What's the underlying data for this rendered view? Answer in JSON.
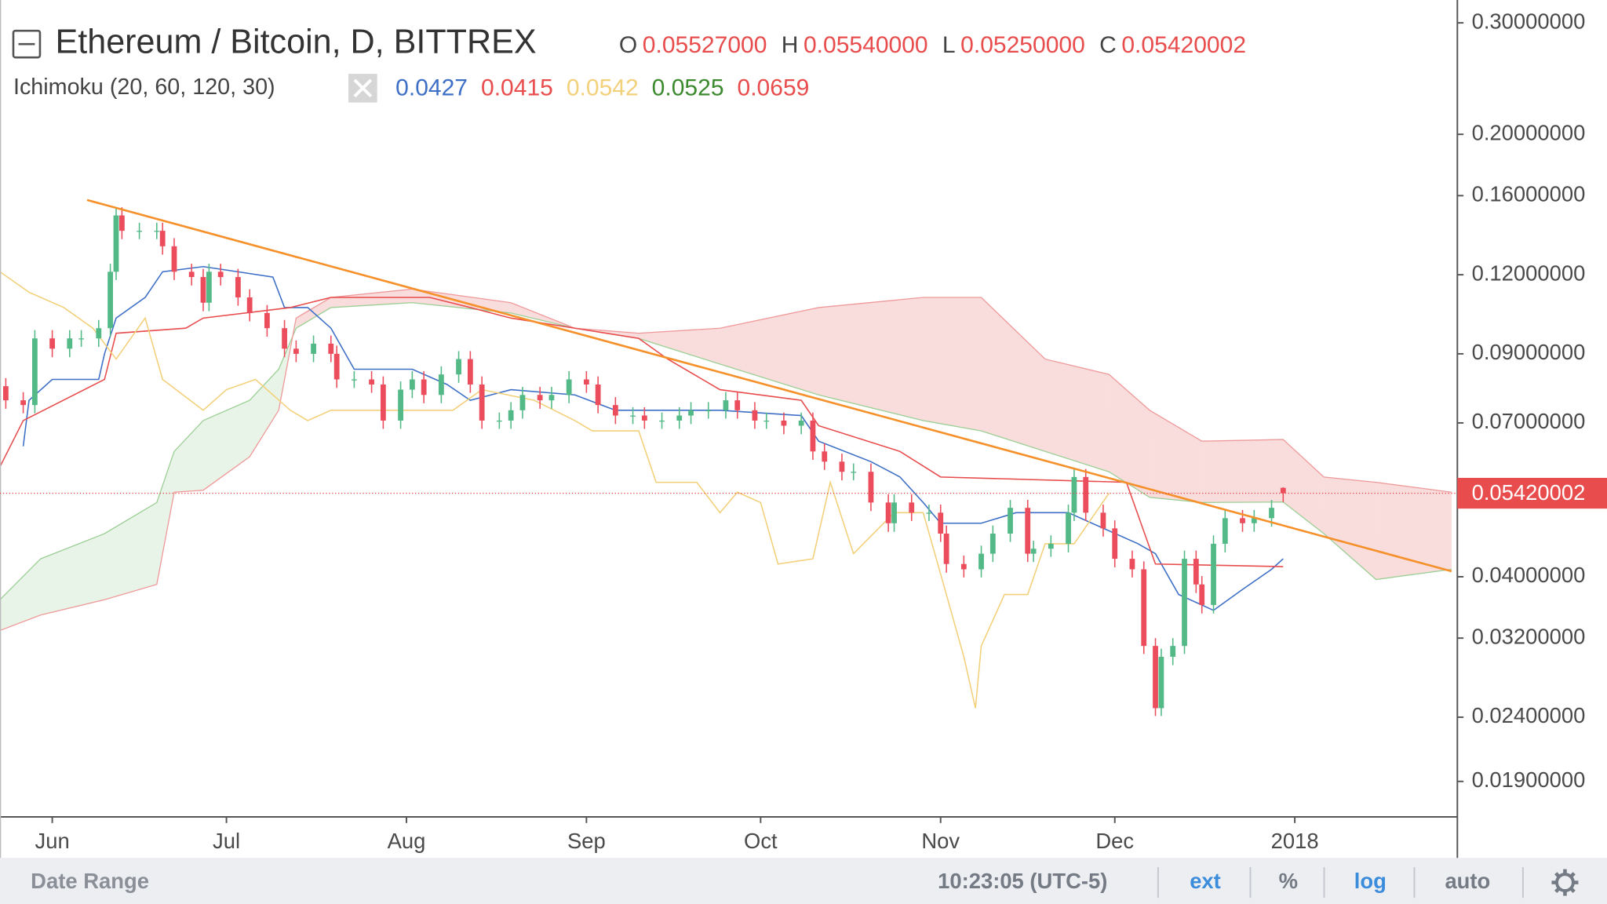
{
  "chart_data": {
    "type": "candlestick",
    "title": "Ethereum / Bitcoin, D, BITTREX",
    "ohlc_keys": [
      "O",
      "H",
      "L",
      "C"
    ],
    "ohlc_labels": [
      "0.05527000",
      "0.05540000",
      "0.05250000",
      "0.05420002"
    ],
    "indicator": {
      "label": "Ichimoku (20, 60, 120, 30)",
      "values": [
        0.0427,
        0.0415,
        0.0542,
        0.0525,
        0.0659
      ],
      "colors": [
        "#3d6fc6",
        "#e84c4c",
        "#f3d07a",
        "#3c8a2e",
        "#e84c4c"
      ]
    },
    "log_scale": true,
    "grid": false,
    "colors": {
      "up": "#53b987",
      "down": "#eb4d5c"
    },
    "xlim": [
      -9,
      242
    ],
    "xticks": [
      {
        "value": 0,
        "label": "Jun"
      },
      {
        "value": 30,
        "label": "Jul"
      },
      {
        "value": 61,
        "label": "Aug"
      },
      {
        "value": 92,
        "label": "Sep"
      },
      {
        "value": 122,
        "label": "Oct"
      },
      {
        "value": 153,
        "label": "Nov"
      },
      {
        "value": 183,
        "label": "Dec"
      },
      {
        "value": 214,
        "label": "2018"
      }
    ],
    "ylim": [
      0.0167,
      0.326
    ],
    "yticks": [
      {
        "value": 0.3,
        "label": "0.30000000"
      },
      {
        "value": 0.2,
        "label": "0.20000000"
      },
      {
        "value": 0.16,
        "label": "0.16000000"
      },
      {
        "value": 0.12,
        "label": "0.12000000"
      },
      {
        "value": 0.09,
        "label": "0.09000000"
      },
      {
        "value": 0.07,
        "label": "0.07000000"
      },
      {
        "value": 0.04,
        "label": "0.04000000"
      },
      {
        "value": 0.032,
        "label": "0.03200000"
      },
      {
        "value": 0.024,
        "label": "0.02400000"
      },
      {
        "value": 0.019,
        "label": "0.01900000"
      }
    ],
    "x": [
      -8,
      -5,
      -3,
      0,
      3,
      5,
      8,
      10,
      11,
      12,
      15,
      18,
      19,
      21,
      24,
      26,
      27,
      29,
      32,
      34,
      37,
      40,
      42,
      45,
      48,
      49,
      52,
      55,
      57,
      60,
      62,
      64,
      67,
      70,
      72,
      74,
      77,
      79,
      81,
      84,
      86,
      89,
      92,
      94,
      97,
      100,
      102,
      105,
      108,
      110,
      113,
      116,
      118,
      121,
      123,
      126,
      129,
      131,
      133,
      136,
      138,
      141,
      144,
      145,
      148,
      151,
      153,
      154,
      157,
      160,
      162,
      165,
      168,
      169,
      172,
      175,
      176,
      178,
      181,
      183,
      186,
      188,
      190,
      191,
      193,
      195,
      197,
      198,
      200,
      202,
      205,
      207,
      210,
      212
    ],
    "open": [
      0.08,
      0.076,
      0.0747,
      0.0952,
      0.0917,
      0.0952,
      0.0952,
      0.0988,
      0.1213,
      0.1489,
      0.1408,
      0.1408,
      0.1408,
      0.1331,
      0.1213,
      0.119,
      0.1084,
      0.1213,
      0.119,
      0.1105,
      0.1044,
      0.0988,
      0.0917,
      0.09,
      0.0934,
      0.09,
      0.082,
      0.082,
      0.0805,
      0.0706,
      0.079,
      0.082,
      0.0775,
      0.0835,
      0.0883,
      0.0805,
      0.0706,
      0.0706,
      0.0733,
      0.0775,
      0.076,
      0.0775,
      0.082,
      0.0805,
      0.0747,
      0.0719,
      0.0719,
      0.0706,
      0.0706,
      0.0719,
      0.0733,
      0.0733,
      0.076,
      0.0733,
      0.0706,
      0.0706,
      0.0693,
      0.0706,
      0.0631,
      0.0608,
      0.0586,
      0.0586,
      0.0524,
      0.0486,
      0.0524,
      0.0505,
      0.0505,
      0.0468,
      0.0419,
      0.0411,
      0.0435,
      0.0468,
      0.0514,
      0.0435,
      0.0443,
      0.0451,
      0.0505,
      0.0575,
      0.0505,
      0.0477,
      0.0427,
      0.0411,
      0.0311,
      0.0248,
      0.0299,
      0.0311,
      0.0427,
      0.0389,
      0.0361,
      0.0451,
      0.0495,
      0.0486,
      0.0495,
      0.05527
    ],
    "high": [
      0.0824,
      0.0783,
      0.0981,
      0.0981,
      0.0981,
      0.0981,
      0.1018,
      0.1249,
      0.1534,
      0.1534,
      0.145,
      0.145,
      0.145,
      0.1371,
      0.1249,
      0.1226,
      0.1249,
      0.1249,
      0.1226,
      0.1138,
      0.1075,
      0.1018,
      0.0945,
      0.0962,
      0.0962,
      0.0927,
      0.0845,
      0.0845,
      0.0829,
      0.0814,
      0.0845,
      0.0845,
      0.086,
      0.0909,
      0.0909,
      0.0829,
      0.0727,
      0.0755,
      0.0798,
      0.0798,
      0.0798,
      0.0845,
      0.0845,
      0.0829,
      0.0769,
      0.0741,
      0.0741,
      0.0727,
      0.0741,
      0.0755,
      0.0755,
      0.0783,
      0.0783,
      0.0755,
      0.0727,
      0.0727,
      0.0727,
      0.0727,
      0.065,
      0.0626,
      0.0604,
      0.0604,
      0.054,
      0.054,
      0.054,
      0.052,
      0.052,
      0.0482,
      0.0432,
      0.0448,
      0.0482,
      0.0529,
      0.0529,
      0.0456,
      0.0465,
      0.052,
      0.0592,
      0.0592,
      0.052,
      0.0491,
      0.044,
      0.0423,
      0.032,
      0.0308,
      0.032,
      0.044,
      0.044,
      0.0401,
      0.0465,
      0.051,
      0.051,
      0.051,
      0.0529,
      0.0554
    ],
    "low": [
      0.0737,
      0.0725,
      0.0725,
      0.0889,
      0.0889,
      0.0923,
      0.0923,
      0.0958,
      0.1177,
      0.1366,
      0.1366,
      0.1366,
      0.1291,
      0.1177,
      0.1154,
      0.1051,
      0.1051,
      0.1154,
      0.1072,
      0.1013,
      0.0958,
      0.0889,
      0.0873,
      0.0873,
      0.0873,
      0.0795,
      0.0795,
      0.0781,
      0.0685,
      0.0685,
      0.0766,
      0.0752,
      0.0752,
      0.081,
      0.0781,
      0.0685,
      0.0685,
      0.0685,
      0.0711,
      0.0737,
      0.0737,
      0.0752,
      0.0781,
      0.0725,
      0.0697,
      0.0697,
      0.0685,
      0.0685,
      0.0685,
      0.0697,
      0.0711,
      0.0711,
      0.0711,
      0.0685,
      0.0685,
      0.0672,
      0.0672,
      0.0612,
      0.059,
      0.0568,
      0.0568,
      0.0508,
      0.0471,
      0.0471,
      0.049,
      0.049,
      0.0454,
      0.0406,
      0.0399,
      0.0399,
      0.0422,
      0.0454,
      0.0422,
      0.0422,
      0.043,
      0.0437,
      0.049,
      0.049,
      0.0463,
      0.0414,
      0.0399,
      0.0302,
      0.0241,
      0.0241,
      0.029,
      0.0302,
      0.0377,
      0.035,
      0.035,
      0.0437,
      0.0471,
      0.0471,
      0.048,
      0.0525
    ],
    "close": [
      0.076,
      0.0747,
      0.0952,
      0.0917,
      0.0952,
      0.0952,
      0.0988,
      0.1213,
      0.1489,
      0.1408,
      0.1408,
      0.1408,
      0.1331,
      0.1213,
      0.119,
      0.1084,
      0.1213,
      0.119,
      0.1105,
      0.1044,
      0.0988,
      0.0917,
      0.09,
      0.0934,
      0.09,
      0.082,
      0.082,
      0.0805,
      0.0706,
      0.079,
      0.082,
      0.0775,
      0.0835,
      0.0883,
      0.0805,
      0.0706,
      0.0706,
      0.0733,
      0.0775,
      0.076,
      0.0775,
      0.082,
      0.0805,
      0.0747,
      0.0719,
      0.0719,
      0.0706,
      0.0706,
      0.0719,
      0.0733,
      0.0733,
      0.076,
      0.0733,
      0.0706,
      0.0706,
      0.0693,
      0.0706,
      0.0631,
      0.0608,
      0.0586,
      0.0586,
      0.0524,
      0.0486,
      0.0524,
      0.0505,
      0.0505,
      0.0468,
      0.0419,
      0.0411,
      0.0435,
      0.0468,
      0.0514,
      0.0435,
      0.0443,
      0.0451,
      0.0505,
      0.0575,
      0.0505,
      0.0477,
      0.0427,
      0.0411,
      0.0311,
      0.0248,
      0.0299,
      0.0311,
      0.0427,
      0.0389,
      0.0361,
      0.0451,
      0.0495,
      0.0486,
      0.0495,
      0.0514,
      0.05420002
    ],
    "lines": [
      {
        "color": "#3d6fc6",
        "x": [
          -5,
          -4,
          0,
          8,
          9,
          11,
          16,
          19,
          26,
          32,
          38,
          40,
          44,
          48,
          52,
          62,
          68,
          72,
          79,
          90,
          97,
          115,
          129,
          132,
          141,
          146,
          150,
          153,
          160,
          166,
          175,
          187,
          190,
          194,
          200,
          205,
          210,
          212
        ],
        "values": [
          0.0643,
          0.076,
          0.082,
          0.082,
          0.09,
          0.1025,
          0.1105,
          0.1213,
          0.1236,
          0.1213,
          0.119,
          0.1065,
          0.1065,
          0.0988,
          0.0851,
          0.0851,
          0.0805,
          0.076,
          0.079,
          0.0775,
          0.0733,
          0.0733,
          0.0719,
          0.0655,
          0.0608,
          0.0575,
          0.0524,
          0.0486,
          0.0486,
          0.0505,
          0.0505,
          0.0451,
          0.0435,
          0.0375,
          0.0354,
          0.0382,
          0.0411,
          0.0427
        ]
      },
      {
        "color": "#e84c4c",
        "x": [
          -9,
          -5,
          9,
          11,
          23,
          26,
          41,
          48,
          65,
          72,
          79,
          90,
          101,
          106,
          115,
          129,
          132,
          146,
          153,
          185,
          190,
          212
        ],
        "values": [
          0.0597,
          0.0706,
          0.082,
          0.097,
          0.0988,
          0.1025,
          0.1065,
          0.1105,
          0.1105,
          0.1065,
          0.1025,
          0.0988,
          0.0952,
          0.0883,
          0.079,
          0.076,
          0.0693,
          0.0631,
          0.0575,
          0.0564,
          0.0419,
          0.0415
        ]
      },
      {
        "color": "#f3d07a",
        "x": [
          -9,
          -4,
          2,
          7,
          11,
          16,
          19,
          26,
          30,
          35,
          41,
          44,
          48,
          62,
          69,
          74,
          83,
          90,
          93,
          101,
          104,
          111,
          115,
          118,
          122,
          125,
          131,
          134,
          138,
          145,
          150,
          153,
          157,
          159,
          160,
          164,
          168,
          171,
          176,
          182
        ],
        "values": [
          0.1213,
          0.1126,
          0.1065,
          0.0988,
          0.0883,
          0.1025,
          0.082,
          0.0733,
          0.079,
          0.082,
          0.0733,
          0.0706,
          0.0733,
          0.0733,
          0.0733,
          0.079,
          0.076,
          0.0706,
          0.068,
          0.068,
          0.0564,
          0.0564,
          0.0505,
          0.0544,
          0.0524,
          0.0419,
          0.0427,
          0.0564,
          0.0435,
          0.0505,
          0.0505,
          0.0404,
          0.0299,
          0.0248,
          0.0311,
          0.0375,
          0.0375,
          0.0451,
          0.0451,
          0.0542
        ]
      }
    ],
    "cloud": {
      "x": [
        -9,
        -2,
        9,
        18,
        21,
        26,
        34,
        39,
        42,
        48,
        62,
        79,
        90,
        101,
        115,
        132,
        150,
        160,
        171,
        182,
        189,
        198,
        212,
        219,
        228,
        241
      ],
      "lead_a": [
        0.0368,
        0.0427,
        0.0468,
        0.0524,
        0.0631,
        0.0706,
        0.076,
        0.0851,
        0.0988,
        0.1065,
        0.1084,
        0.1044,
        0.0988,
        0.0952,
        0.0867,
        0.0775,
        0.0706,
        0.068,
        0.0631,
        0.0586,
        0.0534,
        0.0524,
        0.0525,
        0.0468,
        0.0396,
        0.0411
      ],
      "lead_b": [
        0.0329,
        0.0348,
        0.0368,
        0.0389,
        0.0544,
        0.0548,
        0.0619,
        0.0733,
        0.1025,
        0.1105,
        0.1139,
        0.1084,
        0.0988,
        0.097,
        0.0988,
        0.1065,
        0.1105,
        0.1105,
        0.0883,
        0.0835,
        0.0733,
        0.0655,
        0.0659,
        0.0575,
        0.0564,
        0.0544
      ],
      "color_a": "#9ccf95",
      "color_b": "#ef9a9a",
      "fill_up": "rgba(156,207,149,0.22)",
      "fill_down": "rgba(239,154,154,0.35)"
    },
    "trendline": {
      "color": "#f5902a",
      "x": [
        6,
        241
      ],
      "values": [
        0.1575,
        0.0408
      ]
    },
    "price_line_color": "#e84c4c"
  },
  "toolbar": {
    "date_range": "Date Range",
    "time": "10:23:05 (UTC-5)",
    "buttons": [
      {
        "label": "ext",
        "active": true
      },
      {
        "label": "%",
        "active": false
      },
      {
        "label": "log",
        "active": true
      },
      {
        "label": "auto",
        "active": false
      }
    ]
  }
}
